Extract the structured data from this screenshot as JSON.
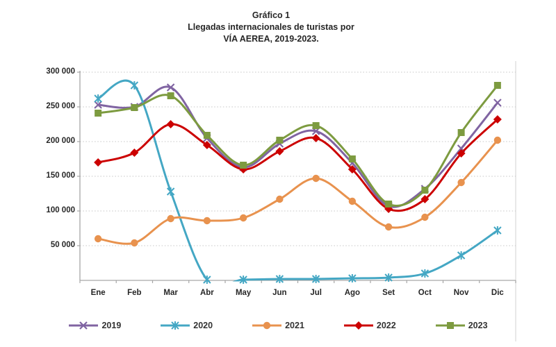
{
  "title": {
    "line1": "Gráfico 1",
    "line2": "Llegadas internacionales de turistas por",
    "line3": "VÍA AEREA, 2019-2023."
  },
  "chart_data": {
    "type": "line",
    "smooth": true,
    "title": "Gráfico 1 — Llegadas internacionales de turistas por VÍA AEREA, 2019-2023.",
    "xlabel": "",
    "ylabel": "",
    "categories": [
      "Ene",
      "Feb",
      "Mar",
      "Abr",
      "May",
      "Jun",
      "Jul",
      "Ago",
      "Set",
      "Oct",
      "Nov",
      "Dic"
    ],
    "ylim": [
      0,
      300000
    ],
    "ytick_interval": 50000,
    "ytick_labels": [
      "50 000",
      "100 000",
      "150 000",
      "200 000",
      "250 000",
      "300 000"
    ],
    "grid": "horizontal-dotted",
    "legend_position": "bottom",
    "series": [
      {
        "name": "2019",
        "color": "#8064A2",
        "marker": "x",
        "values": [
          253000,
          250000,
          278000,
          205000,
          163000,
          197000,
          215000,
          169000,
          107000,
          132000,
          190000,
          256000
        ]
      },
      {
        "name": "2020",
        "color": "#44A7C4",
        "marker": "star",
        "values": [
          262000,
          281000,
          128000,
          1000,
          1000,
          2000,
          2000,
          3000,
          4000,
          10000,
          36000,
          72000
        ]
      },
      {
        "name": "2021",
        "color": "#E8924E",
        "marker": "circle",
        "values": [
          60000,
          54000,
          89000,
          86000,
          90000,
          117000,
          147000,
          114000,
          77000,
          91000,
          141000,
          202000
        ]
      },
      {
        "name": "2022",
        "color": "#CC0000",
        "marker": "diamond",
        "values": [
          170000,
          184000,
          225000,
          195000,
          160000,
          186000,
          205000,
          160000,
          103000,
          117000,
          183000,
          232000
        ]
      },
      {
        "name": "2023",
        "color": "#7D9B40",
        "marker": "square",
        "values": [
          241000,
          249000,
          266000,
          209000,
          166000,
          202000,
          223000,
          175000,
          110000,
          130000,
          213000,
          281000
        ]
      }
    ]
  },
  "colors": {
    "background": "#FFFFFF",
    "text": "#262626",
    "axis": "#A6A6A6",
    "gridline": "#C8C8C8",
    "chart_right_border": "#DCDCDC"
  }
}
